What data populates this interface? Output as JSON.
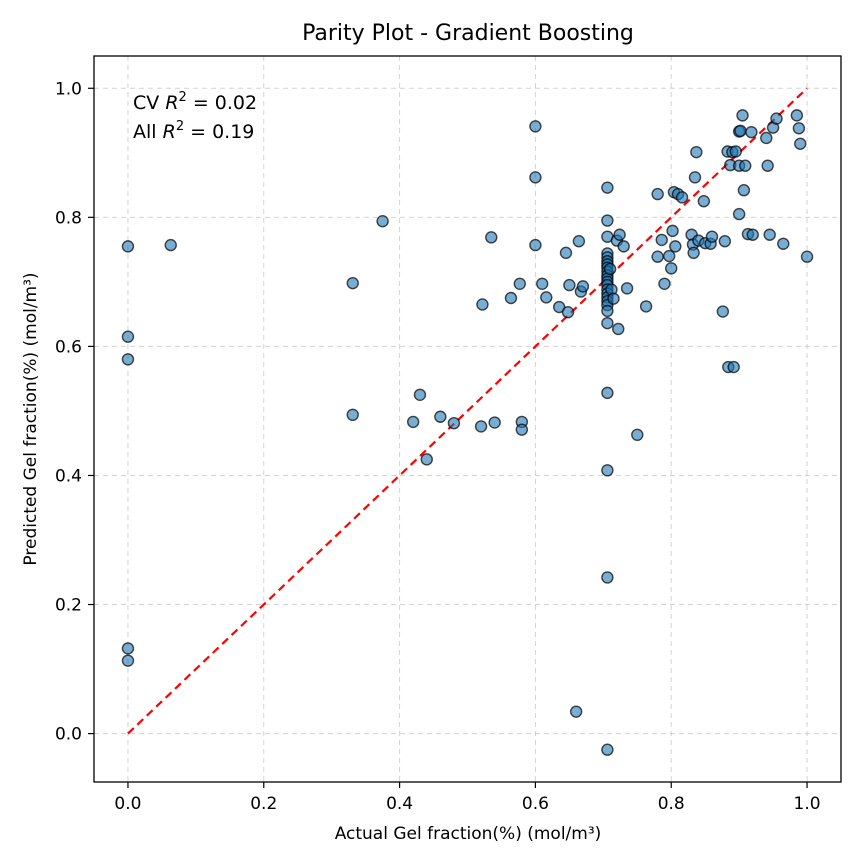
{
  "chart_data": {
    "type": "scatter",
    "title": "Parity Plot - Gradient Boosting",
    "xlabel": "Actual Gel fraction(%) (mol/m³)",
    "ylabel": "Predicted Gel fraction(%) (mol/m³)",
    "xlim": [
      -0.05,
      1.05
    ],
    "ylim": [
      -0.075,
      1.05
    ],
    "xticks": [
      0.0,
      0.2,
      0.4,
      0.6,
      0.8,
      1.0
    ],
    "yticks": [
      0.0,
      0.2,
      0.4,
      0.6,
      0.8,
      1.0
    ],
    "xtick_labels": [
      "0.0",
      "0.2",
      "0.4",
      "0.6",
      "0.8",
      "1.0"
    ],
    "ytick_labels": [
      "0.0",
      "0.2",
      "0.4",
      "0.6",
      "0.8",
      "1.0"
    ],
    "grid": true,
    "annotations": [
      {
        "prefix": "CV ",
        "r": "R",
        "sup": "2",
        "suffix": " = 0.02"
      },
      {
        "prefix": "All ",
        "r": "R",
        "sup": "2",
        "suffix": " = 0.19"
      }
    ],
    "reference_line": {
      "x": [
        0,
        1
      ],
      "y": [
        0,
        1
      ],
      "color": "#ff0000",
      "style": "dashed"
    },
    "point_color": "#1f77b4",
    "points": [
      [
        0.0,
        0.755
      ],
      [
        0.0,
        0.615
      ],
      [
        0.0,
        0.58
      ],
      [
        0.0,
        0.132
      ],
      [
        0.0,
        0.113
      ],
      [
        0.063,
        0.757
      ],
      [
        0.331,
        0.698
      ],
      [
        0.331,
        0.494
      ],
      [
        0.375,
        0.794
      ],
      [
        0.42,
        0.483
      ],
      [
        0.43,
        0.525
      ],
      [
        0.44,
        0.425
      ],
      [
        0.46,
        0.491
      ],
      [
        0.48,
        0.481
      ],
      [
        0.52,
        0.476
      ],
      [
        0.522,
        0.665
      ],
      [
        0.535,
        0.769
      ],
      [
        0.54,
        0.482
      ],
      [
        0.564,
        0.675
      ],
      [
        0.577,
        0.697
      ],
      [
        0.58,
        0.483
      ],
      [
        0.58,
        0.471
      ],
      [
        0.6,
        0.941
      ],
      [
        0.6,
        0.862
      ],
      [
        0.6,
        0.757
      ],
      [
        0.61,
        0.697
      ],
      [
        0.616,
        0.676
      ],
      [
        0.635,
        0.661
      ],
      [
        0.645,
        0.745
      ],
      [
        0.648,
        0.653
      ],
      [
        0.65,
        0.695
      ],
      [
        0.66,
        0.034
      ],
      [
        0.664,
        0.763
      ],
      [
        0.667,
        0.685
      ],
      [
        0.67,
        0.693
      ],
      [
        0.706,
        0.846
      ],
      [
        0.706,
        0.795
      ],
      [
        0.706,
        0.77
      ],
      [
        0.706,
        0.744
      ],
      [
        0.706,
        0.738
      ],
      [
        0.706,
        0.732
      ],
      [
        0.706,
        0.727
      ],
      [
        0.706,
        0.722
      ],
      [
        0.706,
        0.716
      ],
      [
        0.706,
        0.71
      ],
      [
        0.706,
        0.705
      ],
      [
        0.706,
        0.7
      ],
      [
        0.706,
        0.695
      ],
      [
        0.706,
        0.688
      ],
      [
        0.706,
        0.682
      ],
      [
        0.706,
        0.676
      ],
      [
        0.706,
        0.67
      ],
      [
        0.706,
        0.664
      ],
      [
        0.706,
        0.655
      ],
      [
        0.706,
        0.636
      ],
      [
        0.706,
        0.528
      ],
      [
        0.706,
        0.408
      ],
      [
        0.706,
        0.242
      ],
      [
        0.706,
        -0.025
      ],
      [
        0.71,
        0.72
      ],
      [
        0.712,
        0.688
      ],
      [
        0.715,
        0.674
      ],
      [
        0.72,
        0.764
      ],
      [
        0.722,
        0.627
      ],
      [
        0.724,
        0.773
      ],
      [
        0.73,
        0.755
      ],
      [
        0.735,
        0.69
      ],
      [
        0.75,
        0.463
      ],
      [
        0.763,
        0.662
      ],
      [
        0.78,
        0.739
      ],
      [
        0.78,
        0.836
      ],
      [
        0.786,
        0.765
      ],
      [
        0.79,
        0.697
      ],
      [
        0.797,
        0.74
      ],
      [
        0.8,
        0.721
      ],
      [
        0.802,
        0.779
      ],
      [
        0.804,
        0.839
      ],
      [
        0.806,
        0.755
      ],
      [
        0.81,
        0.836
      ],
      [
        0.816,
        0.831
      ],
      [
        0.83,
        0.773
      ],
      [
        0.832,
        0.758
      ],
      [
        0.833,
        0.745
      ],
      [
        0.835,
        0.862
      ],
      [
        0.837,
        0.901
      ],
      [
        0.84,
        0.764
      ],
      [
        0.848,
        0.825
      ],
      [
        0.85,
        0.76
      ],
      [
        0.858,
        0.759
      ],
      [
        0.86,
        0.77
      ],
      [
        0.876,
        0.654
      ],
      [
        0.879,
        0.763
      ],
      [
        0.883,
        0.902
      ],
      [
        0.884,
        0.568
      ],
      [
        0.887,
        0.881
      ],
      [
        0.89,
        0.901
      ],
      [
        0.892,
        0.568
      ],
      [
        0.895,
        0.902
      ],
      [
        0.9,
        0.933
      ],
      [
        0.9,
        0.88
      ],
      [
        0.9,
        0.805
      ],
      [
        0.902,
        0.934
      ],
      [
        0.905,
        0.958
      ],
      [
        0.907,
        0.842
      ],
      [
        0.909,
        0.88
      ],
      [
        0.913,
        0.774
      ],
      [
        0.918,
        0.932
      ],
      [
        0.92,
        0.773
      ],
      [
        0.94,
        0.923
      ],
      [
        0.942,
        0.88
      ],
      [
        0.945,
        0.773
      ],
      [
        0.95,
        0.939
      ],
      [
        0.955,
        0.953
      ],
      [
        0.965,
        0.759
      ],
      [
        0.985,
        0.958
      ],
      [
        0.988,
        0.938
      ],
      [
        0.99,
        0.914
      ],
      [
        1.0,
        0.739
      ]
    ]
  }
}
